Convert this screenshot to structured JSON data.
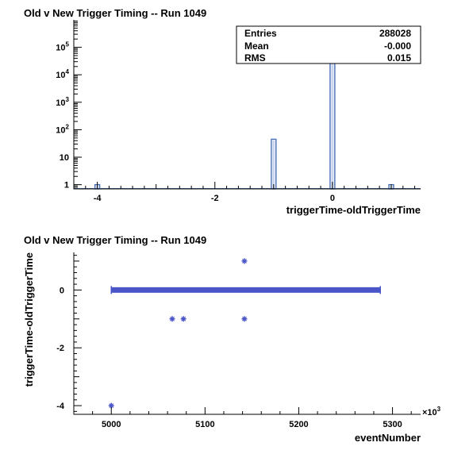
{
  "chart_data": [
    {
      "type": "bar",
      "title": "Old v New Trigger Timing -- Run 1049",
      "xlabel": "triggerTime-oldTriggerTime",
      "ylabel": "",
      "xlim": [
        -4.4,
        1.5
      ],
      "ylim": [
        0.7,
        1000000
      ],
      "yscale": "log",
      "x_ticks": [
        -4,
        -2,
        0
      ],
      "x_tick_labels": [
        "-4",
        "-2",
        "0"
      ],
      "y_ticks": [
        1,
        10,
        100,
        1000,
        10000,
        100000
      ],
      "y_tick_labels": [
        {
          "base": "1",
          "exp": ""
        },
        {
          "base": "10",
          "exp": ""
        },
        {
          "base": "10",
          "exp": "2"
        },
        {
          "base": "10",
          "exp": "3"
        },
        {
          "base": "10",
          "exp": "4"
        },
        {
          "base": "10",
          "exp": "5"
        }
      ],
      "bins": [
        {
          "x": -4,
          "count": 1
        },
        {
          "x": -1,
          "count": 45
        },
        {
          "x": 0,
          "count": 288000
        },
        {
          "x": 1,
          "count": 1
        }
      ],
      "bin_width": 0.08,
      "color": "#4a6fb5",
      "grid": false,
      "stats": {
        "label": "",
        "rows": [
          {
            "name": "Entries",
            "value": "288028"
          },
          {
            "name": "Mean",
            "value": "-0.000"
          },
          {
            "name": "RMS",
            "value": "0.015"
          }
        ]
      }
    },
    {
      "type": "scatter",
      "title": "Old v New Trigger Timing -- Run 1049",
      "xlabel": "eventNumber",
      "ylabel": "triggerTime-oldTriggerTime",
      "xlim": [
        4960,
        5330
      ],
      "ylim": [
        -4.3,
        1.3
      ],
      "x_ticks": [
        5000,
        5100,
        5200,
        5300
      ],
      "x_tick_labels": [
        "5000",
        "5100",
        "5200",
        "5300"
      ],
      "x_multiplier": {
        "base": "×10",
        "exp": "3"
      },
      "y_ticks": [
        -4,
        -2,
        0
      ],
      "y_tick_labels": [
        "-4",
        "-2",
        "0"
      ],
      "band": {
        "x_start": 5000,
        "x_end": 5287,
        "y": 0
      },
      "points": [
        {
          "x": 5000,
          "y": -4
        },
        {
          "x": 5065,
          "y": -1
        },
        {
          "x": 5077,
          "y": -1
        },
        {
          "x": 5142,
          "y": -1
        },
        {
          "x": 5142,
          "y": 1
        }
      ],
      "color": "#4a55c8",
      "grid": false
    }
  ]
}
